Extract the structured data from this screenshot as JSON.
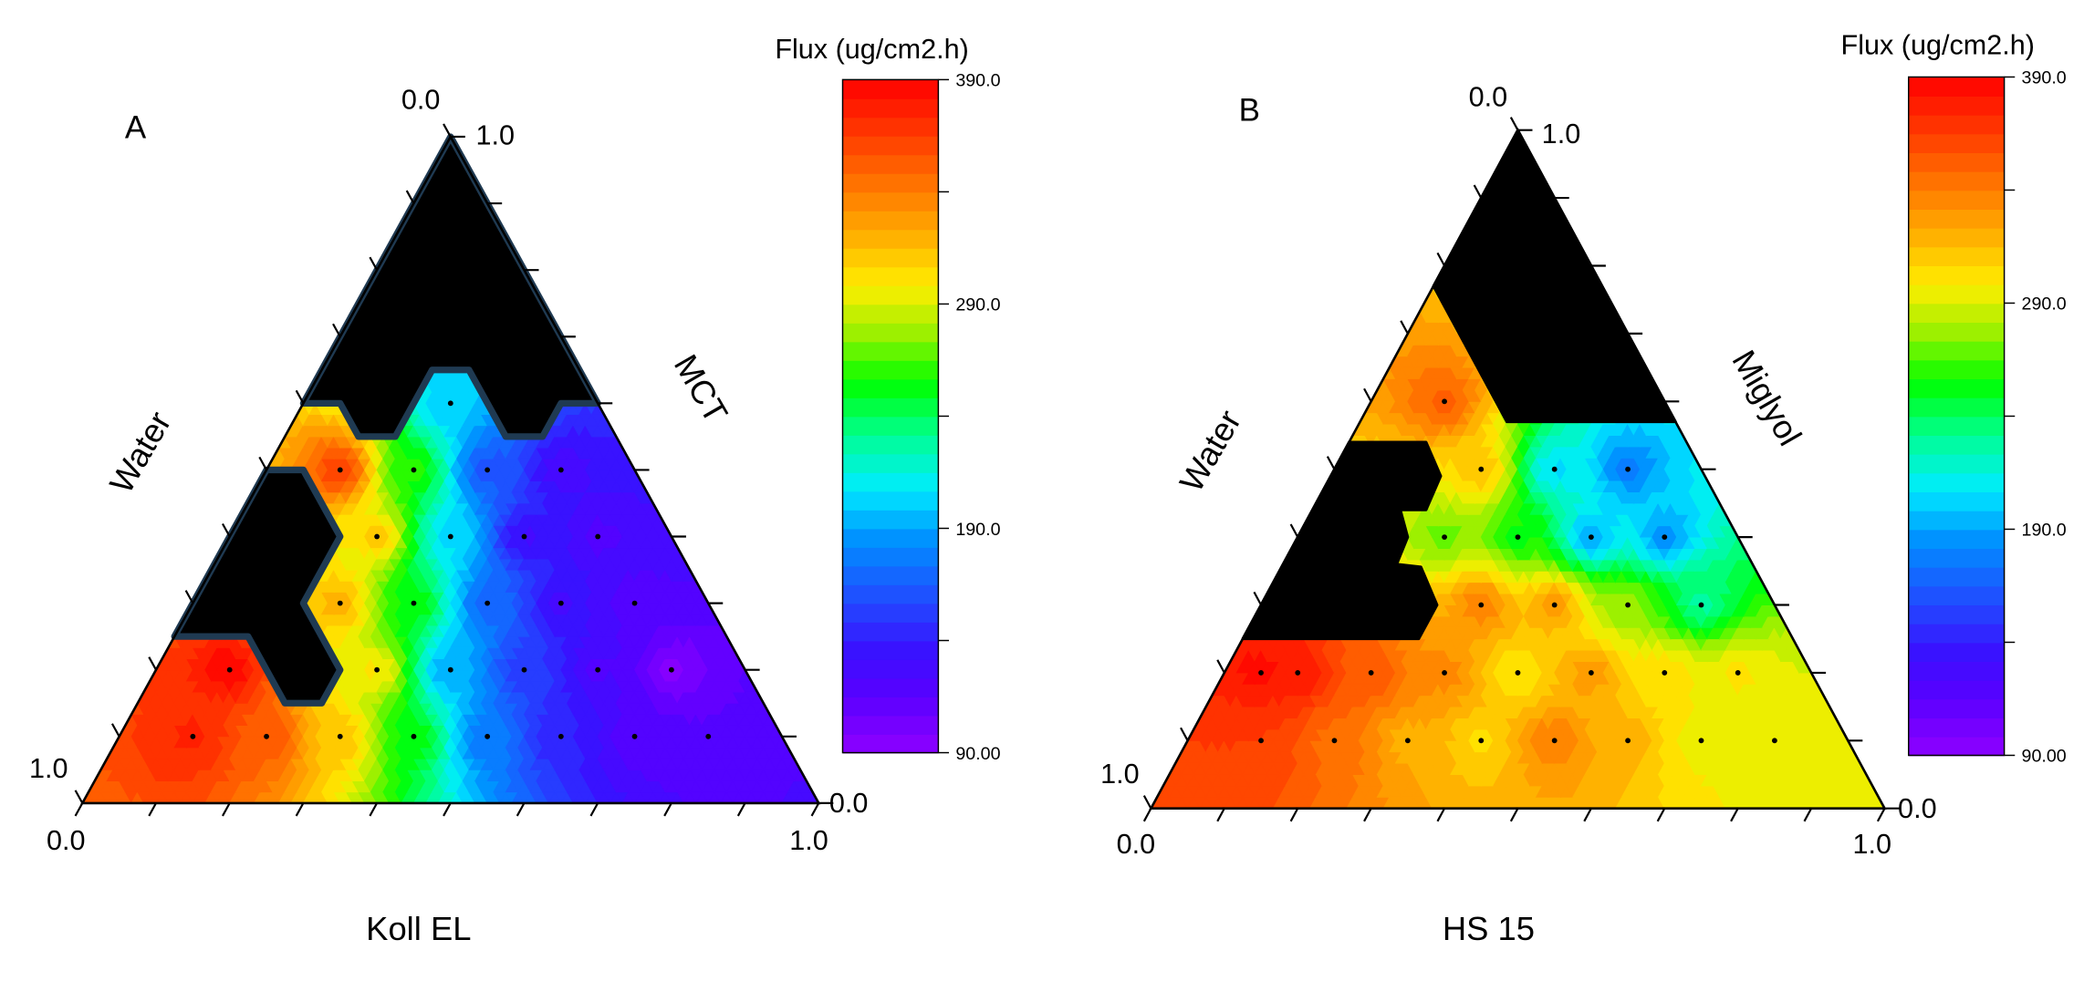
{
  "chart_data": [
    {
      "type": "ternary-contour",
      "panel_label": "A",
      "axes": {
        "bottom": {
          "label": "Koll EL",
          "tick_start": "0.0",
          "tick_end": "1.0"
        },
        "right": {
          "label": "MCT",
          "tick_start": "0.0",
          "tick_end": "1.0"
        },
        "left": {
          "label": "Water",
          "tick_start": "1.0",
          "tick_end": "0.0"
        }
      },
      "colorbar": {
        "title": "Flux (ug/cm2.h)",
        "min": 90,
        "max": 390,
        "tick_labels": [
          "390.0",
          "290.0",
          "190.0",
          "90.00"
        ],
        "tick_values": [
          390,
          290,
          190,
          90
        ],
        "minor_ticks": [
          340,
          240,
          140
        ]
      },
      "point_fields": [
        "MCT",
        "Koll EL",
        "Flux"
      ],
      "points": [
        [
          0.1,
          0.1,
          375
        ],
        [
          0.1,
          0.2,
          355
        ],
        [
          0.1,
          0.3,
          315
        ],
        [
          0.1,
          0.4,
          255
        ],
        [
          0.1,
          0.5,
          175
        ],
        [
          0.1,
          0.6,
          140
        ],
        [
          0.1,
          0.7,
          118
        ],
        [
          0.1,
          0.8,
          115
        ],
        [
          0.2,
          0.1,
          388
        ],
        [
          0.2,
          0.3,
          300
        ],
        [
          0.2,
          0.4,
          190
        ],
        [
          0.2,
          0.5,
          150
        ],
        [
          0.2,
          0.6,
          122
        ],
        [
          0.2,
          0.7,
          95
        ],
        [
          0.3,
          0.2,
          320
        ],
        [
          0.3,
          0.3,
          255
        ],
        [
          0.3,
          0.4,
          170
        ],
        [
          0.3,
          0.5,
          130
        ],
        [
          0.3,
          0.6,
          118
        ],
        [
          0.4,
          0.2,
          310
        ],
        [
          0.4,
          0.3,
          205
        ],
        [
          0.4,
          0.4,
          130
        ],
        [
          0.4,
          0.5,
          120
        ],
        [
          0.5,
          0.1,
          365
        ],
        [
          0.5,
          0.2,
          260
        ],
        [
          0.5,
          0.3,
          160
        ],
        [
          0.5,
          0.4,
          125
        ],
        [
          0.6,
          0.2,
          200
        ]
      ],
      "hidden_regions": [
        [
          [
            1,
            0
          ],
          [
            0.6,
            0
          ],
          [
            0.6,
            0.05
          ],
          [
            0.55,
            0.1
          ],
          [
            0.55,
            0.15
          ],
          [
            0.65,
            0.15
          ],
          [
            0.65,
            0.2
          ],
          [
            0.55,
            0.3
          ],
          [
            0.55,
            0.35
          ],
          [
            0.6,
            0.35
          ],
          [
            0.6,
            0.4
          ]
        ],
        [
          [
            0.5,
            0
          ],
          [
            0.5,
            0.05
          ],
          [
            0.4,
            0.15
          ],
          [
            0.3,
            0.15
          ],
          [
            0.2,
            0.25
          ],
          [
            0.15,
            0.25
          ],
          [
            0.15,
            0.2
          ],
          [
            0.25,
            0.1
          ],
          [
            0.25,
            0
          ]
        ]
      ],
      "hidden_region_fill": "#000000",
      "hidden_region_outline": "#1f3a52"
    },
    {
      "type": "ternary-contour",
      "panel_label": "B",
      "axes": {
        "bottom": {
          "label": "HS 15",
          "tick_start": "0.0",
          "tick_end": "1.0"
        },
        "right": {
          "label": "Miglyol",
          "tick_start": "0.0",
          "tick_end": "1.0"
        },
        "left": {
          "label": "Water",
          "tick_start": "1.0",
          "tick_end": "0.0"
        }
      },
      "colorbar": {
        "title": "Flux (ug/cm2.h)",
        "min": 90,
        "max": 390,
        "tick_labels": [
          "390.0",
          "290.0",
          "190.0",
          "90.00"
        ],
        "tick_values": [
          390,
          290,
          190,
          90
        ],
        "minor_ticks": [
          340,
          240,
          140
        ]
      },
      "point_fields": [
        "Miglyol",
        "HS 15",
        "Flux"
      ],
      "points": [
        [
          0.1,
          0.1,
          365
        ],
        [
          0.1,
          0.2,
          345
        ],
        [
          0.1,
          0.3,
          320
        ],
        [
          0.1,
          0.4,
          305
        ],
        [
          0.1,
          0.5,
          340
        ],
        [
          0.1,
          0.6,
          320
        ],
        [
          0.1,
          0.7,
          295
        ],
        [
          0.1,
          0.8,
          295
        ],
        [
          0.2,
          0.05,
          385
        ],
        [
          0.2,
          0.1,
          380
        ],
        [
          0.2,
          0.2,
          355
        ],
        [
          0.2,
          0.3,
          335
        ],
        [
          0.2,
          0.4,
          300
        ],
        [
          0.2,
          0.5,
          330
        ],
        [
          0.2,
          0.6,
          305
        ],
        [
          0.2,
          0.7,
          300
        ],
        [
          0.3,
          0.3,
          340
        ],
        [
          0.3,
          0.4,
          330
        ],
        [
          0.3,
          0.5,
          275
        ],
        [
          0.3,
          0.6,
          230
        ],
        [
          0.4,
          0.2,
          270
        ],
        [
          0.4,
          0.3,
          255
        ],
        [
          0.4,
          0.4,
          190
        ],
        [
          0.4,
          0.5,
          185
        ],
        [
          0.5,
          0.2,
          315
        ],
        [
          0.5,
          0.3,
          205
        ],
        [
          0.5,
          0.4,
          180
        ],
        [
          0.6,
          0.1,
          350
        ]
      ],
      "hidden_regions": [
        [
          [
            1,
            0
          ],
          [
            0.77,
            0
          ],
          [
            0.66,
            0.11
          ],
          [
            0.57,
            0.2
          ],
          [
            0.57,
            0.43
          ]
        ],
        [
          [
            0.54,
            0
          ],
          [
            0.54,
            0.105
          ],
          [
            0.49,
            0.15
          ],
          [
            0.44,
            0.155
          ],
          [
            0.44,
            0.12
          ],
          [
            0.4,
            0.15
          ],
          [
            0.36,
            0.155
          ],
          [
            0.356,
            0.19
          ],
          [
            0.3,
            0.24
          ],
          [
            0.25,
            0.24
          ],
          [
            0.25,
            0
          ]
        ]
      ],
      "hidden_region_fill": "#000000",
      "hidden_region_outline": ""
    }
  ],
  "colormap": {
    "levels": 36,
    "stops": [
      [
        90,
        "#8f00ff"
      ],
      [
        115,
        "#5a00ff"
      ],
      [
        135,
        "#3a10ff"
      ],
      [
        160,
        "#1f50ff"
      ],
      [
        185,
        "#0090ff"
      ],
      [
        208,
        "#00ecff"
      ],
      [
        232,
        "#00ff90"
      ],
      [
        255,
        "#00ff00"
      ],
      [
        278,
        "#a0f000"
      ],
      [
        298,
        "#ffee00"
      ],
      [
        320,
        "#ffb000"
      ],
      [
        345,
        "#ff7000"
      ],
      [
        370,
        "#ff3000"
      ],
      [
        390,
        "#ff0000"
      ]
    ]
  }
}
